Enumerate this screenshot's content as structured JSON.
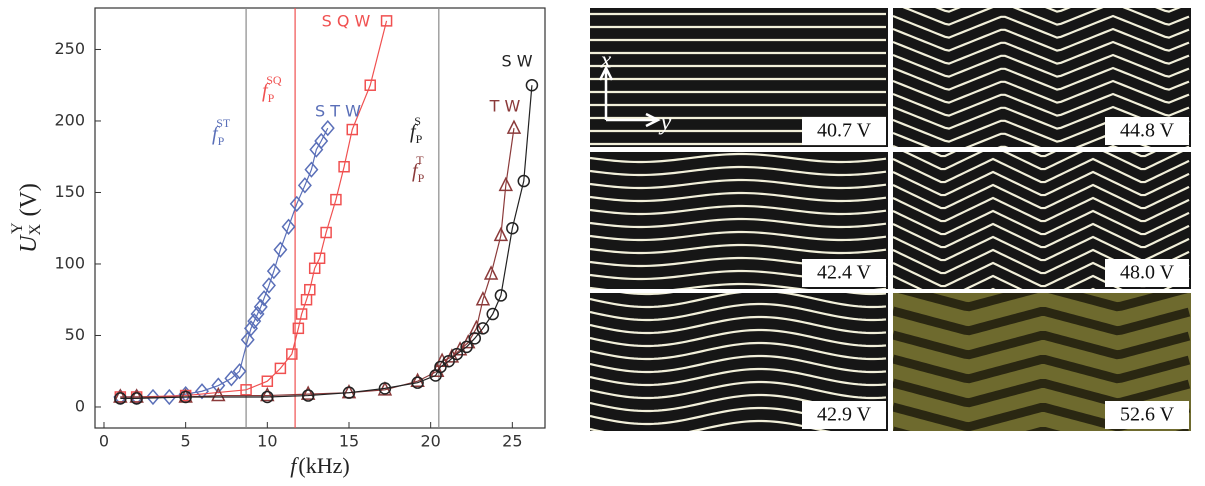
{
  "chart_data": {
    "type": "scatter",
    "x_label": {
      "text": "f",
      "unit": "(kHz)"
    },
    "y_label": {
      "text": "U",
      "sub": "X",
      "sup": "Y",
      "unit": "(V)"
    },
    "xlim": [
      -0.55,
      27
    ],
    "ylim": [
      -14.7,
      279
    ],
    "xticks": [
      0,
      5,
      10,
      15,
      20,
      25
    ],
    "yticks": [
      0,
      50,
      100,
      150,
      200,
      250
    ],
    "vlines": [
      {
        "x": 8.7,
        "color": "#8a8a8a"
      },
      {
        "x": 11.7,
        "color": "#f05050"
      },
      {
        "x": 20.5,
        "color": "#8a8a8a"
      }
    ],
    "annotations": [
      {
        "text": "f",
        "sub": "P",
        "sup": "ST",
        "color": "#5a6fb8"
      },
      {
        "text": "f",
        "sub": "P",
        "sup": "SQ",
        "color": "#f05050"
      },
      {
        "text": "f",
        "sub": "P",
        "sup": "S",
        "color": "#222222"
      },
      {
        "text": "f",
        "sub": "P",
        "sup": "T",
        "color": "#8b3a3a"
      }
    ],
    "series": [
      {
        "name": "S T W",
        "color": "#5a6fb8",
        "marker": "diamond",
        "x": [
          1,
          2,
          3,
          4,
          5,
          6,
          7,
          7.8,
          8.3,
          8.8,
          9.0,
          9.2,
          9.4,
          9.6,
          9.8,
          10.1,
          10.4,
          10.8,
          11.3,
          11.8,
          12.3,
          12.7,
          13.0,
          13.3,
          13.7
        ],
        "values": [
          7,
          7,
          7,
          7,
          9,
          11,
          15,
          20,
          25,
          47,
          55,
          60,
          65,
          70,
          76,
          85,
          95,
          110,
          126,
          142,
          155,
          166,
          180,
          186,
          195
        ]
      },
      {
        "name": "S Q W",
        "color": "#f05050",
        "marker": "square",
        "x": [
          1,
          2,
          5,
          8.7,
          10.0,
          10.8,
          11.5,
          11.9,
          12.1,
          12.4,
          12.6,
          12.9,
          13.2,
          13.6,
          14.2,
          14.7,
          15.2,
          16.3,
          17.3
        ],
        "values": [
          7,
          7,
          8,
          12,
          18,
          27,
          37,
          55,
          65,
          75,
          82,
          97,
          104,
          122,
          145,
          168,
          194,
          225,
          270
        ]
      },
      {
        "name": "T W",
        "color": "#8b3a3a",
        "marker": "triangle",
        "x": [
          1,
          2,
          5,
          7,
          10,
          12.5,
          15,
          17.2,
          19.2,
          20.4,
          20.7,
          21.3,
          21.8,
          22.3,
          22.8,
          23.2,
          23.7,
          24.3,
          24.6,
          25.1
        ],
        "values": [
          7,
          7,
          7,
          8,
          8,
          9,
          10,
          12,
          18,
          25,
          32,
          35,
          40,
          45,
          55,
          75,
          93,
          120,
          155,
          195
        ]
      },
      {
        "name": "S W",
        "color": "#222222",
        "marker": "circle",
        "x": [
          1,
          2,
          5,
          10,
          12.5,
          15,
          17.2,
          19.2,
          20.3,
          20.6,
          21.1,
          21.6,
          22.2,
          22.7,
          23.2,
          23.8,
          24.3,
          25.0,
          25.7,
          26.2
        ],
        "values": [
          6,
          6,
          7,
          7,
          8,
          10,
          13,
          17,
          22,
          28,
          32,
          37,
          42,
          48,
          55,
          65,
          78,
          125,
          158,
          225
        ]
      }
    ]
  },
  "inset_axes": {
    "x": "x",
    "y": "y"
  },
  "panels": [
    {
      "label": "40.7 V"
    },
    {
      "label": "44.8 V"
    },
    {
      "label": "42.4 V"
    },
    {
      "label": "48.0 V"
    },
    {
      "label": "42.9 V"
    },
    {
      "label": "52.6 V"
    }
  ]
}
